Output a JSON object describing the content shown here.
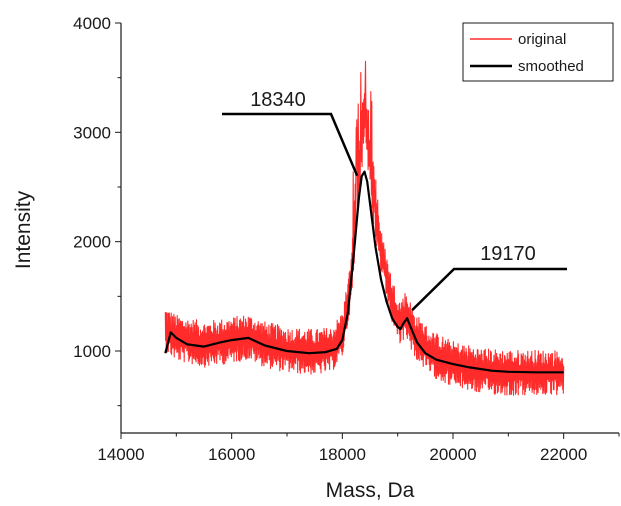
{
  "chart_data": {
    "type": "line",
    "xlabel": "Mass, Da",
    "ylabel": "Intensity",
    "xlim": [
      14000,
      23000
    ],
    "ylim": [
      250,
      4000
    ],
    "x_ticks": [
      14000,
      16000,
      18000,
      20000,
      22000
    ],
    "y_ticks": [
      1000,
      2000,
      3000,
      4000
    ],
    "x_tick_labels": [
      "14000",
      "16000",
      "18000",
      "20000",
      "22000"
    ],
    "y_tick_labels": [
      "1000",
      "2000",
      "3000",
      "4000"
    ],
    "grid": false,
    "legend": {
      "placement": "top-right",
      "entries": [
        {
          "label": "original",
          "color": "#ff2a2a"
        },
        {
          "label": "smoothed",
          "color": "#000000"
        }
      ]
    },
    "series": [
      {
        "name": "original",
        "color": "#ff2a2a",
        "noise_band": 210,
        "x": [
          14800,
          15000,
          15500,
          16000,
          16300,
          16600,
          17000,
          17500,
          17800,
          18000,
          18150,
          18250,
          18350,
          18400,
          18450,
          18550,
          18700,
          18900,
          19050,
          19150,
          19300,
          19600,
          20000,
          20500,
          21000,
          21500,
          22000
        ],
        "y": [
          1200,
          1120,
          1060,
          1100,
          1130,
          1060,
          1010,
          990,
          1010,
          1150,
          1600,
          2350,
          2950,
          3150,
          3000,
          2500,
          1900,
          1450,
          1250,
          1350,
          1150,
          980,
          880,
          820,
          800,
          800,
          800
        ],
        "peak_max": 3650
      },
      {
        "name": "smoothed",
        "color": "#000000",
        "x": [
          14800,
          14900,
          15000,
          15200,
          15500,
          15800,
          16000,
          16300,
          16600,
          17000,
          17400,
          17700,
          17900,
          18000,
          18100,
          18200,
          18300,
          18350,
          18400,
          18450,
          18500,
          18600,
          18700,
          18800,
          18900,
          19000,
          19050,
          19100,
          19170,
          19250,
          19350,
          19500,
          19700,
          20000,
          20300,
          20700,
          21000,
          21500,
          22000
        ],
        "y": [
          980,
          1170,
          1120,
          1060,
          1040,
          1080,
          1100,
          1120,
          1050,
          1000,
          980,
          990,
          1020,
          1100,
          1350,
          1850,
          2400,
          2600,
          2640,
          2550,
          2350,
          1950,
          1650,
          1450,
          1300,
          1220,
          1200,
          1250,
          1300,
          1200,
          1080,
          980,
          920,
          880,
          850,
          820,
          810,
          805,
          805
        ]
      }
    ],
    "annotations": [
      {
        "text": "18340",
        "x": 18340,
        "y": 2640
      },
      {
        "text": "19170",
        "x": 19170,
        "y": 1300
      }
    ]
  }
}
